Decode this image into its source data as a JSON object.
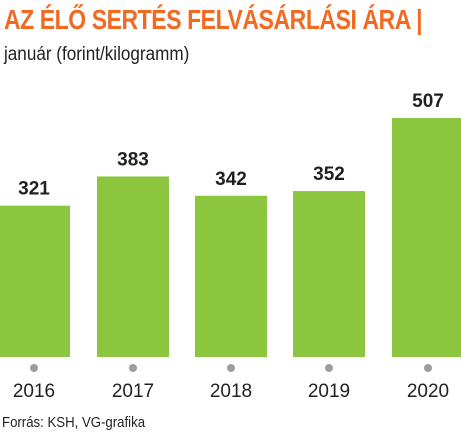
{
  "header": {
    "title": "AZ ÉLŐ SERTÉS FELVÁSÁRLÁSI ÁRA |",
    "subtitle": "január (forint/kilogramm)"
  },
  "footer": {
    "source": "Forrás: KSH, VG-grafika"
  },
  "colors": {
    "title": "#f26a21",
    "bar": "#8cc63f",
    "tick_dot": "#9d9d9d",
    "text": "#231f20"
  },
  "chart_data": {
    "type": "bar",
    "categories": [
      "2016",
      "2017",
      "2018",
      "2019",
      "2020"
    ],
    "values": [
      321,
      383,
      342,
      352,
      507
    ],
    "title": "AZ ÉLŐ SERTÉS FELVÁSÁRLÁSI ÁRA |",
    "subtitle": "január (forint/kilogramm)",
    "xlabel": "",
    "ylabel": "",
    "ylim": [
      0,
      507
    ],
    "grid": false,
    "legend": "none",
    "data_labels": true
  }
}
